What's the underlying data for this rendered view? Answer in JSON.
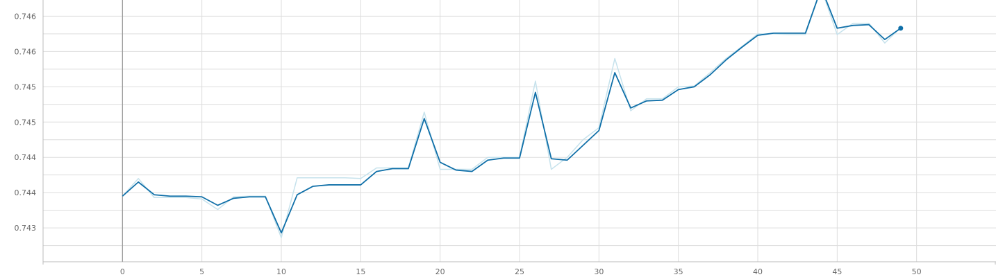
{
  "chart_data": {
    "type": "line",
    "title": "",
    "xlabel": "",
    "ylabel": "",
    "grid": true,
    "legend": "none",
    "xlim": [
      -5,
      55
    ],
    "ylim": [
      0.74277,
      0.74648
    ],
    "x_ticks": [
      0,
      5,
      10,
      15,
      20,
      25,
      30,
      35,
      40,
      45,
      50
    ],
    "x_tick_labels": [
      "0",
      "5",
      "10",
      "15",
      "20",
      "25",
      "30",
      "35",
      "40",
      "45",
      "50"
    ],
    "y_ticks": [
      0.743,
      0.74325,
      0.7435,
      0.74375,
      0.744,
      0.74425,
      0.7445,
      0.74475,
      0.745,
      0.74525,
      0.7455,
      0.74575,
      0.746,
      0.74625
    ],
    "y_tick_labels": [
      "",
      "0.743",
      "",
      "0.744",
      "",
      "0.744",
      "",
      "0.745",
      "",
      "0.745",
      "",
      "0.746",
      "",
      "0.746"
    ],
    "x": [
      0,
      1,
      2,
      3,
      4,
      5,
      6,
      7,
      8,
      9,
      10,
      11,
      12,
      13,
      14,
      15,
      16,
      17,
      18,
      19,
      20,
      21,
      22,
      23,
      24,
      25,
      26,
      27,
      28,
      29,
      30,
      31,
      32,
      33,
      34,
      35,
      36,
      37,
      38,
      39,
      40,
      41,
      42,
      43,
      44,
      45,
      46,
      47,
      48,
      49
    ],
    "series": [
      {
        "role": "raw",
        "color": "#c6e2ec",
        "values": [
          0.7437,
          0.74395,
          0.74368,
          0.74368,
          0.74368,
          0.74366,
          0.74351,
          0.74369,
          0.7437,
          0.7437,
          0.74311,
          0.74396,
          0.74396,
          0.74396,
          0.74396,
          0.74395,
          0.7441,
          0.7441,
          0.7441,
          0.74489,
          0.74408,
          0.74408,
          0.74408,
          0.74425,
          0.74425,
          0.74425,
          0.74533,
          0.74408,
          0.74425,
          0.7445,
          0.74467,
          0.74565,
          0.74491,
          0.74508,
          0.74508,
          0.74525,
          0.74526,
          0.74545,
          0.74565,
          0.74582,
          0.746,
          0.746,
          0.74599,
          0.74599,
          0.74664,
          0.74599,
          0.74615,
          0.74615,
          0.74587,
          0.74609
        ]
      },
      {
        "role": "smoothed",
        "color": "#0f6fa8",
        "values": [
          0.7437,
          0.7439,
          0.74372,
          0.7437,
          0.7437,
          0.74369,
          0.74357,
          0.74367,
          0.74369,
          0.74369,
          0.74318,
          0.74372,
          0.74384,
          0.74386,
          0.74386,
          0.74386,
          0.74405,
          0.74409,
          0.74409,
          0.7448,
          0.74418,
          0.74407,
          0.74405,
          0.74421,
          0.74424,
          0.74424,
          0.74517,
          0.74423,
          0.74421,
          0.74442,
          0.74463,
          0.74545,
          0.74495,
          0.74505,
          0.74506,
          0.74521,
          0.74525,
          0.74542,
          0.74563,
          0.74581,
          0.74598,
          0.74601,
          0.74601,
          0.74601,
          0.74665,
          0.74608,
          0.74612,
          0.74613,
          0.74592,
          0.74608
        ]
      }
    ]
  }
}
